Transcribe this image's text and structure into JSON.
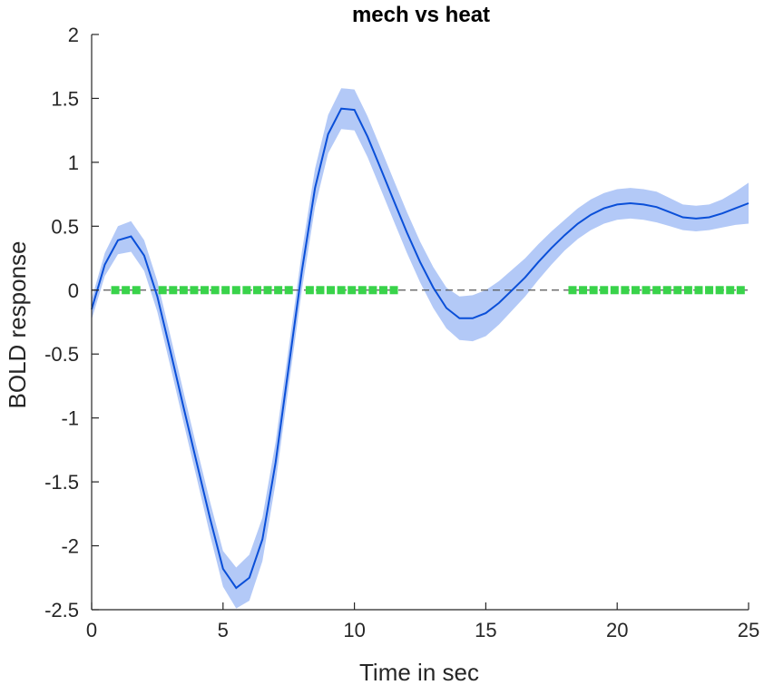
{
  "chart_data": {
    "type": "line",
    "title": "mech vs heat",
    "xlabel": "Time in sec",
    "ylabel": "BOLD response",
    "xlim": [
      0,
      25
    ],
    "ylim": [
      -2.5,
      2
    ],
    "xticks": [
      0,
      5,
      10,
      15,
      20,
      25
    ],
    "yticks": [
      -2.5,
      -2,
      -1.5,
      -1,
      -0.5,
      0,
      0.5,
      1,
      1.5,
      2
    ],
    "xtick_labels": [
      "0",
      "5",
      "10",
      "15",
      "20",
      "25"
    ],
    "ytick_labels": [
      "-2.5",
      "-2",
      "-1.5",
      "-1",
      "-0.5",
      "0",
      "0.5",
      "1",
      "1.5",
      "2"
    ],
    "grid": false,
    "reference_line": {
      "y": 0,
      "style": "dashed",
      "color": "#555555"
    },
    "series": [
      {
        "type": "line_with_band",
        "color": "#0a4fd8",
        "band_color": "#b3c9f7",
        "x": [
          0,
          0.5,
          1,
          1.5,
          2,
          2.5,
          3,
          3.5,
          4,
          4.5,
          5,
          5.5,
          6,
          6.5,
          7,
          7.5,
          8,
          8.5,
          9,
          9.5,
          10,
          10.5,
          11,
          11.5,
          12,
          12.5,
          13,
          13.5,
          14,
          14.5,
          15,
          15.5,
          16,
          16.5,
          17,
          17.5,
          18,
          18.5,
          19,
          19.5,
          20,
          20.5,
          21,
          21.5,
          22,
          22.5,
          23,
          23.5,
          24,
          24.5,
          25
        ],
        "y": [
          -0.15,
          0.2,
          0.39,
          0.42,
          0.27,
          -0.05,
          -0.48,
          -0.92,
          -1.35,
          -1.78,
          -2.18,
          -2.33,
          -2.25,
          -1.95,
          -1.35,
          -0.6,
          0.15,
          0.8,
          1.22,
          1.42,
          1.41,
          1.2,
          0.95,
          0.7,
          0.45,
          0.22,
          0.02,
          -0.14,
          -0.22,
          -0.22,
          -0.18,
          -0.1,
          0.0,
          0.1,
          0.22,
          0.33,
          0.43,
          0.52,
          0.59,
          0.64,
          0.67,
          0.68,
          0.67,
          0.65,
          0.61,
          0.57,
          0.56,
          0.57,
          0.6,
          0.64,
          0.68
        ],
        "band_halfwidth": [
          0.08,
          0.09,
          0.11,
          0.12,
          0.12,
          0.12,
          0.12,
          0.12,
          0.12,
          0.13,
          0.14,
          0.16,
          0.18,
          0.17,
          0.16,
          0.15,
          0.15,
          0.15,
          0.15,
          0.16,
          0.16,
          0.16,
          0.16,
          0.16,
          0.16,
          0.16,
          0.16,
          0.16,
          0.17,
          0.18,
          0.18,
          0.17,
          0.16,
          0.15,
          0.14,
          0.13,
          0.12,
          0.12,
          0.12,
          0.12,
          0.12,
          0.12,
          0.12,
          0.12,
          0.11,
          0.1,
          0.1,
          0.1,
          0.11,
          0.13,
          0.16
        ]
      }
    ],
    "significance_markers": {
      "color": "#39d34a",
      "y": 0,
      "x": [
        0.9,
        1.3,
        1.7,
        2.7,
        3.1,
        3.5,
        3.9,
        4.3,
        4.7,
        5.1,
        5.5,
        5.9,
        6.3,
        6.7,
        7.1,
        7.5,
        8.3,
        8.7,
        9.1,
        9.5,
        9.9,
        10.3,
        10.7,
        11.1,
        11.5,
        18.3,
        18.7,
        19.1,
        19.5,
        19.9,
        20.3,
        20.7,
        21.1,
        21.5,
        21.9,
        22.3,
        22.7,
        23.1,
        23.5,
        23.9,
        24.3,
        24.7
      ]
    }
  }
}
